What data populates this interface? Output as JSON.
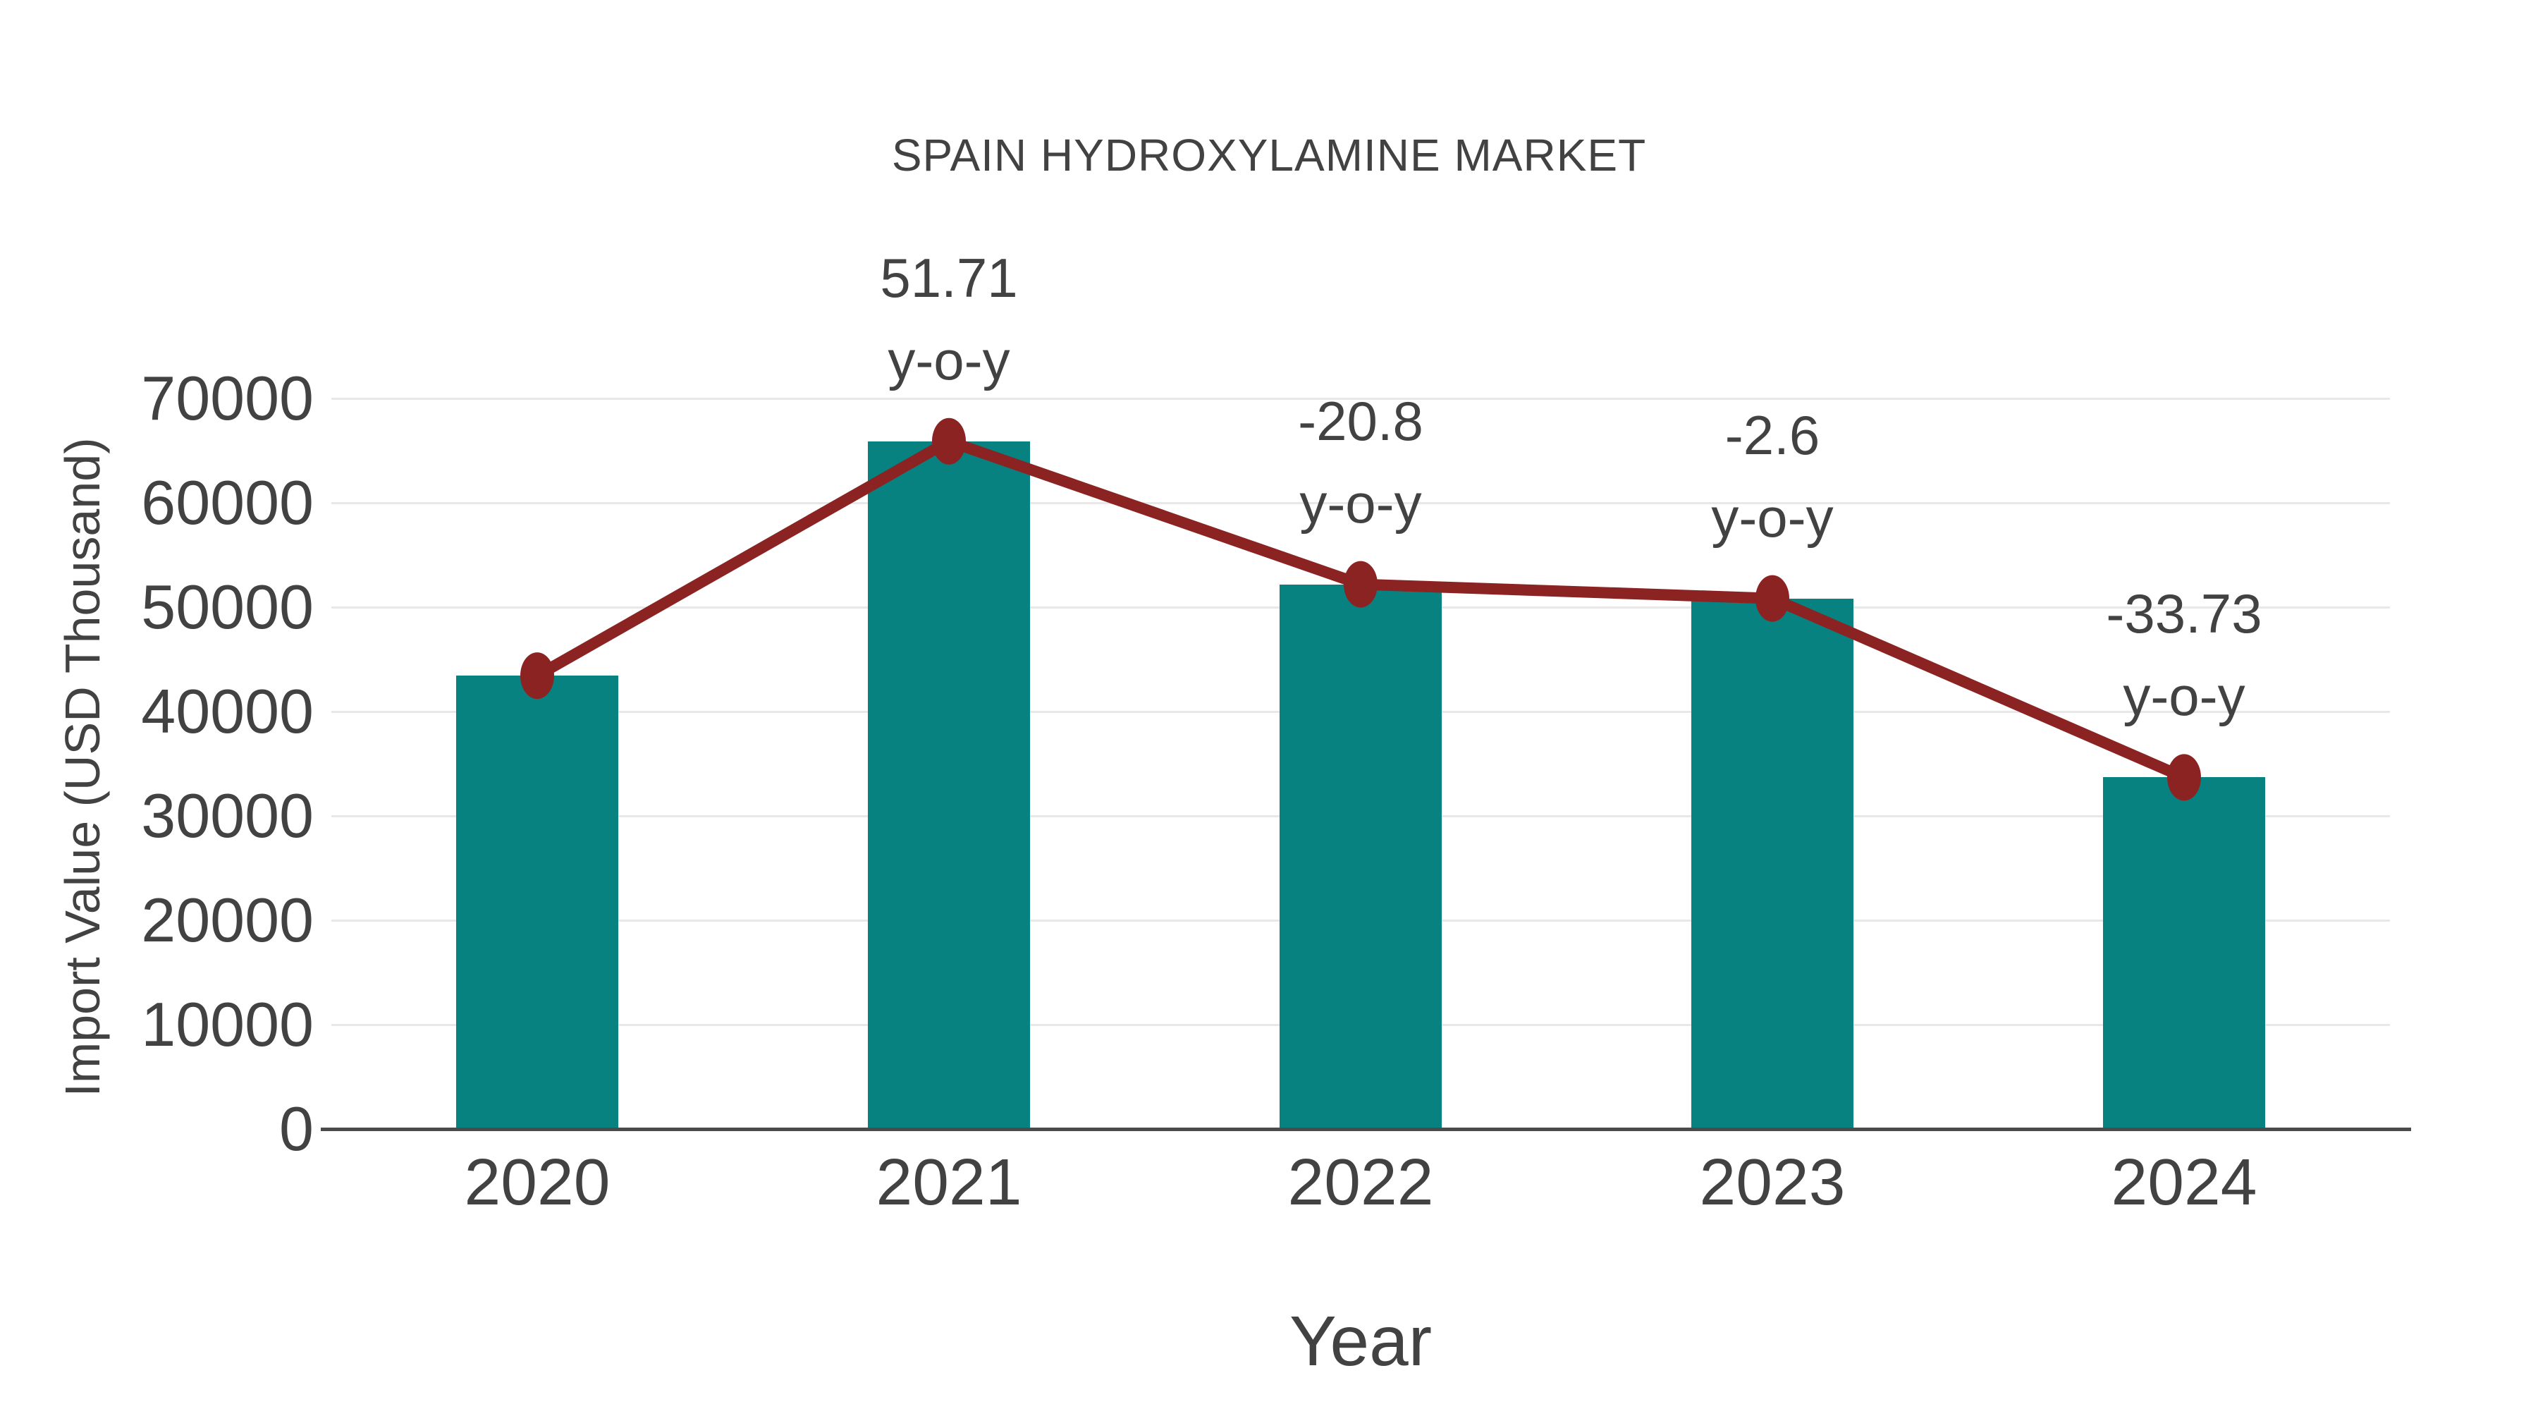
{
  "title": "SPAIN HYDROXYLAMINE MARKET",
  "chart_data": {
    "type": "bar",
    "title": "SPAIN HYDROXYLAMINE MARKET",
    "xlabel": "Year",
    "ylabel": "Import Value (USD Thousand)",
    "categories": [
      "2020",
      "2021",
      "2022",
      "2023",
      "2024"
    ],
    "series": [
      {
        "name": "Import Value bars",
        "type": "bar",
        "values": [
          43437,
          65898,
          52191,
          50834,
          33688
        ]
      },
      {
        "name": "Import Value trend",
        "type": "line",
        "values": [
          43437,
          65898,
          52191,
          50834,
          33688
        ]
      }
    ],
    "annotations": [
      {
        "category": "2021",
        "lines": [
          "51.71",
          "y-o-y"
        ]
      },
      {
        "category": "2022",
        "lines": [
          "-20.8",
          "y-o-y"
        ]
      },
      {
        "category": "2023",
        "lines": [
          "-2.6",
          "y-o-y"
        ]
      },
      {
        "category": "2024",
        "lines": [
          "-33.73",
          "y-o-y"
        ]
      }
    ],
    "ylim": [
      0,
      70000
    ],
    "yticks": [
      0,
      10000,
      20000,
      30000,
      40000,
      50000,
      60000,
      70000
    ],
    "grid": true,
    "legend": "none",
    "colors": {
      "bar": "#078280",
      "line": "#8b2323",
      "marker": "#8b2323",
      "text": "#424242",
      "grid": "#e8e8e8",
      "axis": "#4a4a4a",
      "background": "#ffffff"
    }
  }
}
